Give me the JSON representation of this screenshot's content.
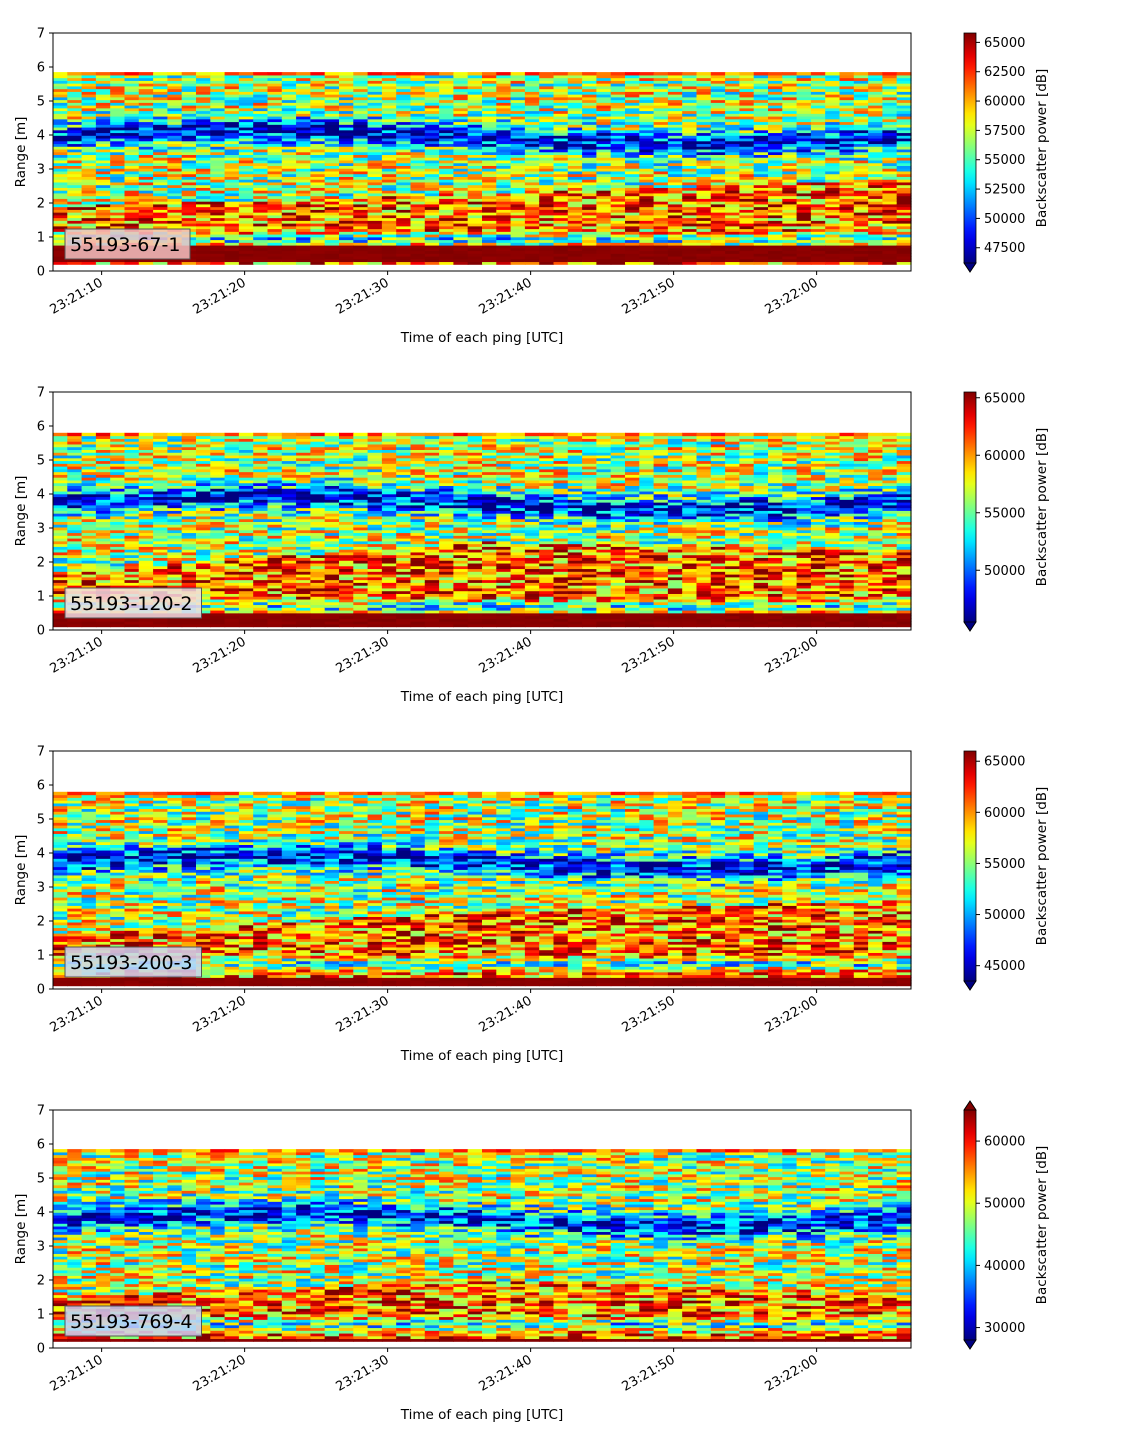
{
  "colormap": "jet",
  "colors": {
    "background": "#ffffff",
    "axis": "#000000",
    "no_data": "#ffffff",
    "label_box_border": "#555555"
  },
  "chart_data": [
    {
      "type": "heatmap",
      "label": "55193-67-1",
      "label_box_color": "#f2c2c2",
      "xlabel": "Time of each ping [UTC]",
      "ylabel": "Range [m]",
      "colorbar_label": "Backscatter power [dB]",
      "x_ticks": [
        "23:21:10",
        "23:21:20",
        "23:21:30",
        "23:21:40",
        "23:21:50",
        "23:22:00"
      ],
      "x_tick_seconds": [
        10,
        20,
        30,
        40,
        50,
        60
      ],
      "xlim_seconds": [
        6.6,
        66.6
      ],
      "y_ticks": [
        "0",
        "1",
        "2",
        "3",
        "4",
        "5",
        "6",
        "7"
      ],
      "ylim": [
        0,
        7
      ],
      "data_range_m": [
        0.2,
        5.85
      ],
      "clim": [
        46200,
        65800
      ],
      "colorbar_ticks": [
        "47500",
        "50000",
        "52500",
        "55000",
        "57500",
        "60000",
        "62500",
        "65000"
      ],
      "colorbar_extend": "min",
      "low_band": [
        3.6,
        4.3
      ],
      "high_band_top": [
        1.9,
        2.3,
        2.7
      ],
      "mid_band": [
        0.9,
        1.0
      ],
      "bottom_echo": [
        0.25,
        0.8
      ]
    },
    {
      "type": "heatmap",
      "label": "55193-120-2",
      "label_box_color": "#f0dde4",
      "xlabel": "Time of each ping [UTC]",
      "ylabel": "Range [m]",
      "colorbar_label": "Backscatter power [dB]",
      "x_ticks": [
        "23:21:10",
        "23:21:20",
        "23:21:30",
        "23:21:40",
        "23:21:50",
        "23:22:00"
      ],
      "x_tick_seconds": [
        10,
        20,
        30,
        40,
        50,
        60
      ],
      "xlim_seconds": [
        6.6,
        66.6
      ],
      "y_ticks": [
        "0",
        "1",
        "2",
        "3",
        "4",
        "5",
        "6",
        "7"
      ],
      "ylim": [
        0,
        7
      ],
      "data_range_m": [
        0.1,
        5.8
      ],
      "clim": [
        45500,
        65500
      ],
      "colorbar_ticks": [
        "50000",
        "55000",
        "60000",
        "65000"
      ],
      "colorbar_extend": "min",
      "low_band": [
        3.4,
        4.1
      ],
      "high_band_top": [
        1.7,
        2.6,
        2.3
      ],
      "mid_band": [
        0.55,
        0.85
      ],
      "bottom_echo": [
        0.1,
        0.5
      ]
    },
    {
      "type": "heatmap",
      "label": "55193-200-3",
      "label_box_color": "#c9d3f4",
      "xlabel": "Time of each ping [UTC]",
      "ylabel": "Range [m]",
      "colorbar_label": "Backscatter power [dB]",
      "x_ticks": [
        "23:21:10",
        "23:21:20",
        "23:21:30",
        "23:21:40",
        "23:21:50",
        "23:22:00"
      ],
      "x_tick_seconds": [
        10,
        20,
        30,
        40,
        50,
        60
      ],
      "xlim_seconds": [
        6.6,
        66.6
      ],
      "y_ticks": [
        "0",
        "1",
        "2",
        "3",
        "4",
        "5",
        "6",
        "7"
      ],
      "ylim": [
        0,
        7
      ],
      "data_range_m": [
        0.1,
        5.8
      ],
      "clim": [
        43500,
        66000
      ],
      "colorbar_ticks": [
        "45000",
        "50000",
        "55000",
        "60000",
        "65000"
      ],
      "colorbar_extend": "min",
      "low_band": [
        3.4,
        4.1
      ],
      "high_band_top": [
        1.6,
        2.3,
        2.6
      ],
      "mid_band": [
        0.5,
        1.0
      ],
      "bottom_echo": [
        0.1,
        0.35
      ]
    },
    {
      "type": "heatmap",
      "label": "55193-769-4",
      "label_box_color": "#c7cff6",
      "xlabel": "Time of each ping [UTC]",
      "ylabel": "Range [m]",
      "colorbar_label": "Backscatter power [dB]",
      "x_ticks": [
        "23:21:10",
        "23:21:20",
        "23:21:30",
        "23:21:40",
        "23:21:50",
        "23:22:00"
      ],
      "x_tick_seconds": [
        10,
        20,
        30,
        40,
        50,
        60
      ],
      "xlim_seconds": [
        6.6,
        66.6
      ],
      "y_ticks": [
        "0",
        "1",
        "2",
        "3",
        "4",
        "5",
        "6",
        "7"
      ],
      "ylim": [
        0,
        7
      ],
      "data_range_m": [
        0.2,
        5.85
      ],
      "clim": [
        28000,
        65000
      ],
      "colorbar_ticks": [
        "30000",
        "40000",
        "50000",
        "60000"
      ],
      "colorbar_extend": "both",
      "low_band": [
        3.4,
        4.2
      ],
      "high_band_top": [
        1.5,
        2.0,
        1.6
      ],
      "mid_band": [
        0.4,
        1.0
      ],
      "bottom_echo": [
        0.2,
        0.3
      ]
    }
  ]
}
